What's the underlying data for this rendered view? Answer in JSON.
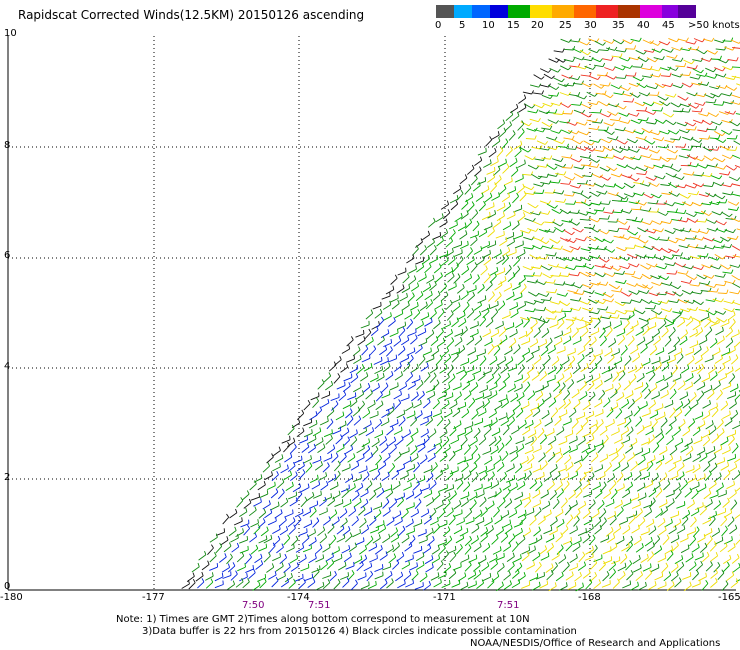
{
  "title": "Rapidscat Corrected Winds(12.5KM) 20150126 ascending",
  "colorbar": {
    "colors": [
      "#555555",
      "#00aaff",
      "#0066ff",
      "#0000dd",
      "#00aa00",
      "#ffdd00",
      "#ffaa00",
      "#ff6600",
      "#ee2222",
      "#aa3300",
      "#dd00dd",
      "#8800dd",
      "#550099"
    ],
    "labels": [
      "0",
      "5",
      "10",
      "15",
      "20",
      "25",
      "30",
      "35",
      "40",
      "45",
      ">50 knots"
    ]
  },
  "axes": {
    "y_ticks": [
      "0",
      "2",
      "4",
      "6",
      "8",
      "10"
    ],
    "x_ticks": [
      "-180",
      "-177",
      "-174",
      "-171",
      "-168",
      "-165"
    ]
  },
  "pass_times": [
    "7:50",
    "7:51",
    "7:51"
  ],
  "notes": {
    "line1": "Note: 1) Times are GMT 2)Times along bottom correspond to measurement at 10N",
    "line2": "3)Data buffer is 22 hrs from 20150126 4) Black circles indicate possible contamination",
    "credit": "NOAA/NESDIS/Office of Research and Applications"
  }
}
